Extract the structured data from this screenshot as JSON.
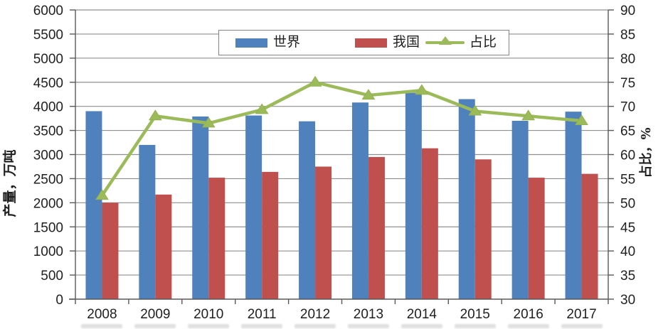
{
  "chart_data": {
    "type": "combo-bar-line",
    "title": "",
    "categories": [
      "2008",
      "2009",
      "2010",
      "2011",
      "2012",
      "2013",
      "2014",
      "2015",
      "2016",
      "2017"
    ],
    "series": [
      {
        "name": "世界",
        "type": "bar",
        "axis": "left",
        "color": "#4f81bd",
        "values": [
          3900,
          3200,
          3790,
          3810,
          3690,
          4080,
          4280,
          4150,
          3700,
          3890
        ]
      },
      {
        "name": "我国",
        "type": "bar",
        "axis": "left",
        "color": "#c0504d",
        "values": [
          2000,
          2170,
          2520,
          2640,
          2750,
          2950,
          3130,
          2900,
          2520,
          2600
        ]
      },
      {
        "name": "占比",
        "type": "line",
        "axis": "right",
        "color": "#9bbb59",
        "marker": "triangle-up",
        "values": [
          51.5,
          68,
          66.5,
          69.3,
          75,
          72.3,
          73.3,
          69,
          68,
          67
        ]
      }
    ],
    "left_axis": {
      "title": "产量，万吨",
      "min": 0,
      "max": 6000,
      "step": 500,
      "ticks": [
        "0",
        "500",
        "1000",
        "1500",
        "2000",
        "2500",
        "3000",
        "3500",
        "4000",
        "4500",
        "5000",
        "5500",
        "6000"
      ]
    },
    "right_axis": {
      "title": "占比，%",
      "min": 30,
      "max": 90,
      "step": 5,
      "ticks": [
        "30",
        "35",
        "40",
        "45",
        "50",
        "55",
        "60",
        "65",
        "70",
        "75",
        "80",
        "85",
        "90"
      ]
    },
    "grid": true,
    "legend_position": "top-center",
    "grid_color": "#8f8f8f",
    "axis_color": "#595959",
    "text_color": "#1f1f1f"
  }
}
